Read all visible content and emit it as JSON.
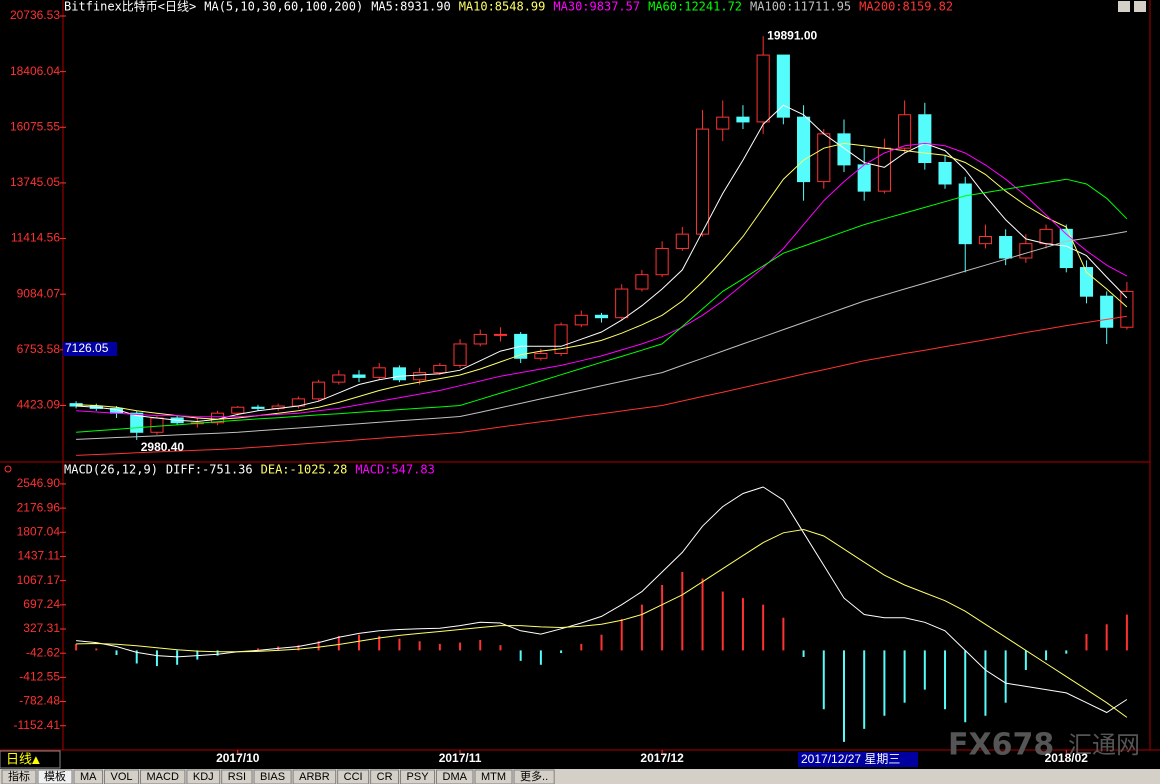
{
  "chart_data": [
    {
      "type": "candlestick",
      "title": "Bitfinex比特币<日线>",
      "indicator_label": "MA(5,10,30,60,100,200)",
      "categories": [
        null,
        null,
        null,
        null,
        null,
        null,
        null,
        null,
        "2017/10",
        null,
        null,
        null,
        null,
        null,
        null,
        null,
        null,
        null,
        null,
        "2017/11",
        null,
        null,
        null,
        null,
        null,
        null,
        null,
        null,
        null,
        "2017/12",
        null,
        null,
        null,
        null,
        null,
        null,
        null,
        null,
        null,
        null,
        null,
        null,
        null,
        null,
        null,
        null,
        null,
        null,
        null,
        "2018/02",
        null,
        null,
        null
      ],
      "ylim": [
        2139,
        20736.53
      ],
      "yticks": [
        {
          "value": 4423.09,
          "label": "4423.09"
        },
        {
          "value": 6753.58,
          "label": "6753.58"
        },
        {
          "value": 9084.07,
          "label": "9084.07"
        },
        {
          "value": 11414.56,
          "label": "11414.56"
        },
        {
          "value": 13745.05,
          "label": "13745.05"
        },
        {
          "value": 16075.55,
          "label": "16075.55"
        },
        {
          "value": 18406.04,
          "label": "18406.04"
        },
        {
          "value": 20736.53,
          "label": "20736.53"
        }
      ],
      "up_color": "#ff3232",
      "down_color": "#54fcfc",
      "candles": {
        "open": [
          4500,
          4400,
          4300,
          4100,
          3300,
          3900,
          3700,
          3700,
          4100,
          4350,
          4300,
          4400,
          4700,
          5400,
          5700,
          5600,
          6000,
          5500,
          5800,
          6100,
          7000,
          7400,
          7400,
          6400,
          6600,
          7800,
          8200,
          8100,
          9300,
          9900,
          11000,
          11600,
          16000,
          16500,
          16300,
          19100,
          16500,
          13800,
          15800,
          14500,
          13400,
          15200,
          16600,
          14600,
          13700,
          11200,
          11500,
          10600,
          11200,
          11800,
          10200,
          9000,
          7700
        ],
        "high": [
          4600,
          4500,
          4400,
          4200,
          4000,
          4000,
          3900,
          4200,
          4400,
          4450,
          4500,
          4800,
          5500,
          5900,
          5900,
          6200,
          6100,
          6000,
          6200,
          7200,
          7600,
          7700,
          7500,
          6800,
          7900,
          8400,
          8300,
          9500,
          10100,
          11300,
          11900,
          16800,
          17200,
          17000,
          19891,
          19100,
          17000,
          16000,
          16400,
          15200,
          15600,
          17200,
          17100,
          14900,
          14000,
          12000,
          11800,
          11600,
          12000,
          12000,
          10500,
          9200,
          9600
        ],
        "low": [
          4300,
          4200,
          3900,
          2980.4,
          3200,
          3600,
          3500,
          3600,
          4000,
          4200,
          4200,
          4300,
          4600,
          5300,
          5400,
          5500,
          5400,
          5300,
          5700,
          6000,
          6900,
          7100,
          6200,
          6300,
          6500,
          7700,
          7900,
          8000,
          9200,
          9800,
          10900,
          11500,
          15500,
          16000,
          15800,
          16200,
          13000,
          13500,
          14200,
          13000,
          13300,
          15000,
          14300,
          13500,
          10000,
          11000,
          10300,
          10400,
          11000,
          10000,
          8700,
          7000,
          7600
        ],
        "close": [
          4400,
          4300,
          4100,
          3300,
          3900,
          3700,
          3700,
          4100,
          4350,
          4300,
          4400,
          4700,
          5400,
          5700,
          5600,
          6000,
          5500,
          5800,
          6100,
          7000,
          7400,
          7400,
          6400,
          6600,
          7800,
          8200,
          8100,
          9300,
          9900,
          11000,
          11600,
          16000,
          16500,
          16300,
          19100,
          16500,
          13800,
          15800,
          14500,
          13400,
          15200,
          16600,
          14600,
          13700,
          11200,
          11500,
          10600,
          11200,
          11800,
          10200,
          9000,
          7700,
          9200
        ]
      },
      "series": [
        {
          "name": "MA5:8931.90",
          "color": "#ffffff",
          "values": [
            4400,
            4350,
            4250,
            4000,
            3900,
            3800,
            3750,
            3850,
            4050,
            4200,
            4300,
            4400,
            4600,
            4950,
            5300,
            5500,
            5650,
            5700,
            5750,
            5900,
            6300,
            6700,
            6900,
            6900,
            6900,
            7200,
            7500,
            8000,
            8600,
            9300,
            10100,
            11700,
            13300,
            14700,
            16200,
            17000,
            16600,
            15800,
            15200,
            14600,
            14400,
            15000,
            15400,
            15100,
            14300,
            13200,
            12200,
            11400,
            11200,
            11100,
            10700,
            9800,
            8930
          ]
        },
        {
          "name": "MA10:8548.99",
          "color": "#ffff66",
          "values": [
            4450,
            4420,
            4350,
            4200,
            4100,
            4000,
            3900,
            3850,
            3900,
            4000,
            4100,
            4200,
            4350,
            4550,
            4800,
            5050,
            5250,
            5400,
            5550,
            5700,
            5950,
            6250,
            6550,
            6700,
            6800,
            6950,
            7150,
            7450,
            7800,
            8200,
            8800,
            9600,
            10500,
            11500,
            12700,
            13900,
            14700,
            15200,
            15400,
            15300,
            15200,
            15100,
            15000,
            14900,
            14600,
            14100,
            13400,
            12800,
            12300,
            11900,
            10000,
            9300,
            8550
          ]
        },
        {
          "name": "MA30:9837.57",
          "color": "#ff00ff",
          "values": [
            4200,
            4150,
            4100,
            4050,
            4000,
            4000,
            3950,
            3950,
            3950,
            4000,
            4050,
            4100,
            4200,
            4300,
            4450,
            4600,
            4750,
            4900,
            5050,
            5250,
            5450,
            5650,
            5800,
            5950,
            6100,
            6300,
            6500,
            6750,
            7000,
            7300,
            7700,
            8200,
            8800,
            9500,
            10200,
            11000,
            12000,
            13000,
            13800,
            14500,
            15000,
            15300,
            15400,
            15300,
            15000,
            14500,
            13900,
            13200,
            12400,
            11600,
            10900,
            10300,
            9840
          ]
        },
        {
          "name": "MA60:12241.72",
          "color": "#00ff00",
          "values": [
            3300,
            3360,
            3420,
            3490,
            3550,
            3610,
            3680,
            3740,
            3800,
            3860,
            3910,
            3970,
            4030,
            4080,
            4140,
            4190,
            4250,
            4310,
            4360,
            4420,
            4680,
            4940,
            5190,
            5450,
            5710,
            5970,
            6230,
            6480,
            6740,
            7000,
            7730,
            8470,
            9200,
            9730,
            10270,
            10800,
            11100,
            11400,
            11700,
            12000,
            12240,
            12480,
            12720,
            12960,
            13200,
            13340,
            13480,
            13620,
            13760,
            13900,
            13700,
            13100,
            12240
          ]
        },
        {
          "name": "MA100:11711.95",
          "color": "#c0c0c0",
          "values": [
            3000,
            3040,
            3080,
            3110,
            3150,
            3190,
            3230,
            3260,
            3300,
            3360,
            3420,
            3480,
            3540,
            3600,
            3660,
            3720,
            3780,
            3840,
            3900,
            3960,
            4140,
            4330,
            4510,
            4700,
            4880,
            5060,
            5250,
            5430,
            5620,
            5800,
            6100,
            6400,
            6700,
            7000,
            7300,
            7600,
            7900,
            8200,
            8500,
            8800,
            9050,
            9300,
            9550,
            9800,
            10050,
            10300,
            10550,
            10800,
            11050,
            11300,
            11430,
            11560,
            11710
          ]
        },
        {
          "name": "MA200:8159.82",
          "color": "#ff3232",
          "values": [
            2330,
            2370,
            2400,
            2440,
            2480,
            2510,
            2550,
            2580,
            2620,
            2680,
            2740,
            2800,
            2860,
            2920,
            2990,
            3050,
            3110,
            3170,
            3230,
            3290,
            3400,
            3520,
            3630,
            3740,
            3850,
            3970,
            4080,
            4190,
            4310,
            4420,
            4610,
            4800,
            4980,
            5170,
            5360,
            5550,
            5740,
            5920,
            6110,
            6300,
            6450,
            6600,
            6740,
            6890,
            7030,
            7180,
            7330,
            7480,
            7620,
            7770,
            7900,
            8030,
            8160
          ]
        }
      ],
      "max_label": "19891.00",
      "min_label": "2980.40",
      "cursor_label": "7126.05"
    },
    {
      "type": "macd",
      "title": "MACD(26,12,9)",
      "ylim": [
        -1493,
        2607
      ],
      "yticks": [
        {
          "value": -1152.41,
          "label": "-1152.41"
        },
        {
          "value": -782.48,
          "label": "-782.48"
        },
        {
          "value": -412.55,
          "label": "-412.55"
        },
        {
          "value": -42.62,
          "label": "-42.62"
        },
        {
          "value": 327.31,
          "label": "327.31"
        },
        {
          "value": 697.24,
          "label": "697.24"
        },
        {
          "value": 1067.17,
          "label": "1067.17"
        },
        {
          "value": 1437.11,
          "label": "1437.11"
        },
        {
          "value": 1807.04,
          "label": "1807.04"
        },
        {
          "value": 2176.96,
          "label": "2176.96"
        },
        {
          "value": 2546.9,
          "label": "2546.90"
        }
      ],
      "series": [
        {
          "name": "DIFF:-751.36",
          "color": "#ffffff",
          "values": [
            150,
            120,
            60,
            -30,
            -80,
            -100,
            -80,
            -60,
            -20,
            0,
            30,
            60,
            120,
            200,
            260,
            300,
            320,
            330,
            340,
            380,
            430,
            420,
            300,
            250,
            330,
            420,
            520,
            700,
            900,
            1200,
            1500,
            1900,
            2200,
            2400,
            2500,
            2300,
            1800,
            1300,
            800,
            550,
            500,
            500,
            430,
            300,
            0,
            -300,
            -500,
            -550,
            -600,
            -650,
            -800,
            -950,
            -751.36
          ]
        },
        {
          "name": "DEA:-1025.28",
          "color": "#ffff66",
          "values": [
            100,
            105,
            95,
            70,
            40,
            10,
            -10,
            -20,
            -20,
            -15,
            0,
            20,
            50,
            90,
            140,
            190,
            230,
            260,
            290,
            320,
            350,
            380,
            380,
            360,
            350,
            370,
            400,
            460,
            550,
            700,
            850,
            1050,
            1250,
            1450,
            1650,
            1800,
            1850,
            1750,
            1550,
            1350,
            1150,
            1000,
            880,
            760,
            600,
            400,
            200,
            0,
            -200,
            -400,
            -600,
            -800,
            -1025.28
          ]
        },
        {
          "name": "MACD:547.83",
          "color": "#ff00ff",
          "up_color": "#ff3232",
          "down_color": "#54fcfc",
          "values": [
            100,
            30,
            -70,
            -200,
            -240,
            -220,
            -140,
            -80,
            0,
            30,
            60,
            80,
            140,
            220,
            240,
            220,
            180,
            140,
            100,
            120,
            160,
            80,
            -160,
            -220,
            -40,
            100,
            240,
            480,
            700,
            1000,
            1200,
            1100,
            900,
            800,
            700,
            500,
            -100,
            -900,
            -1400,
            -1200,
            -1000,
            -800,
            -600,
            -900,
            -1100,
            -1000,
            -800,
            -300,
            -150,
            -50,
            250,
            400,
            547.83
          ]
        }
      ]
    }
  ],
  "ui": {
    "period_button": "日线▲",
    "cursor_date": "2017/12/27 星期三",
    "tabs": [
      "指标",
      "模板",
      "MA",
      "VOL",
      "MACD",
      "KDJ",
      "RSI",
      "BIAS",
      "ARBR",
      "CCI",
      "CR",
      "PSY",
      "DMA",
      "MTM",
      "更多.."
    ],
    "watermark": [
      "FX678",
      "汇通网"
    ]
  }
}
